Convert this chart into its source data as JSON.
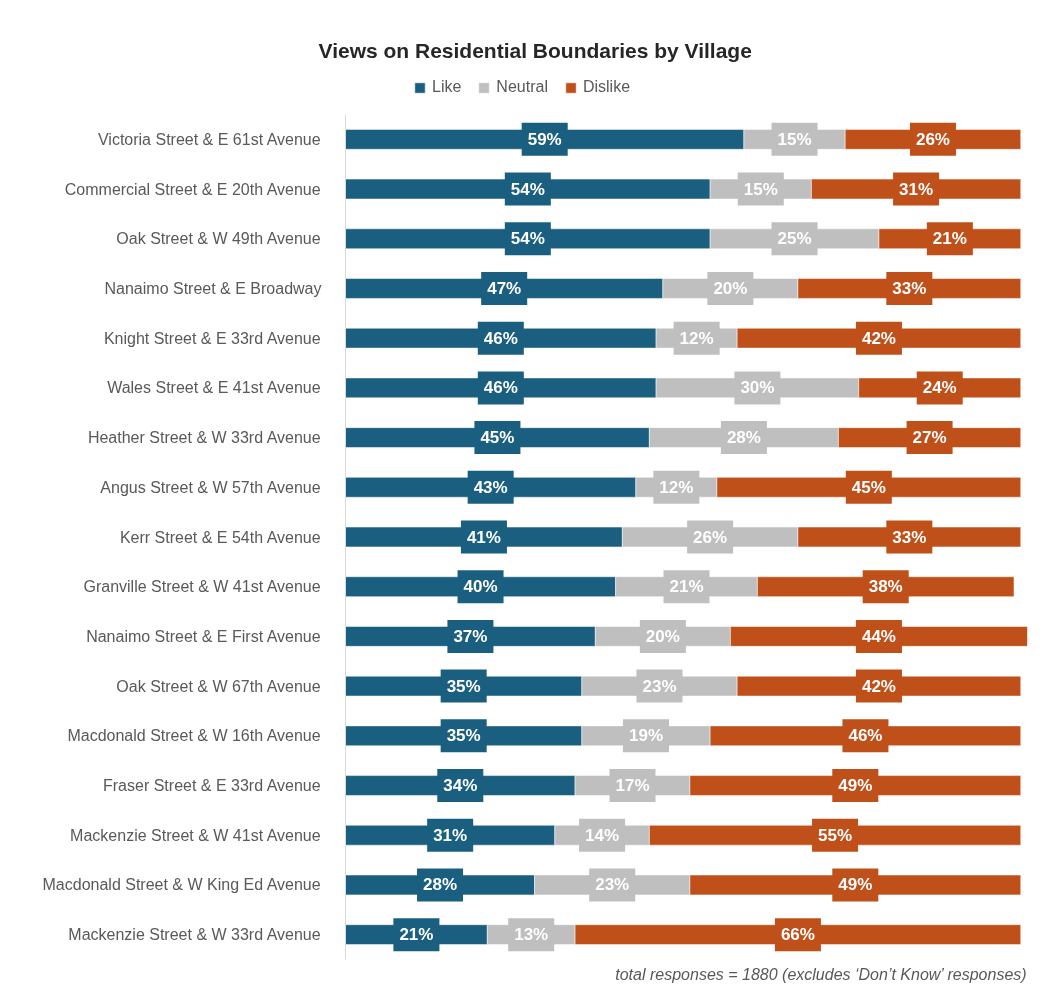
{
  "chart_data": {
    "type": "bar",
    "orientation": "horizontal",
    "stacked": true,
    "title": "Views on Residential Boundaries by Village",
    "categories": [
      "Victoria Street & E 61st Avenue",
      "Commercial Street & E 20th Avenue",
      "Oak Street & W 49th Avenue",
      "Nanaimo Street & E Broadway",
      "Knight Street & E 33rd Avenue",
      "Wales Street & E 41st Avenue",
      "Heather Street & W 33rd Avenue",
      "Angus Street & W 57th Avenue",
      "Kerr Street & E 54th Avenue",
      "Granville Street & W 41st Avenue",
      "Nanaimo Street & E First Avenue",
      "Oak Street & W 67th Avenue",
      "Macdonald Street & W 16th Avenue",
      "Fraser Street & E 33rd Avenue",
      "Mackenzie Street & W 41st Avenue",
      "Macdonald Street & W King Ed Avenue",
      "Mackenzie Street & W 33rd Avenue"
    ],
    "series": [
      {
        "name": "Like",
        "color": "#1b5f80",
        "values": [
          59,
          54,
          54,
          47,
          46,
          46,
          45,
          43,
          41,
          40,
          37,
          35,
          35,
          34,
          31,
          28,
          21
        ],
        "value_labels": [
          "59%",
          "54%",
          "54%",
          "47%",
          "46%",
          "46%",
          "45%",
          "43%",
          "41%",
          "40%",
          "37%",
          "35%",
          "35%",
          "34%",
          "31%",
          "28%",
          "21%"
        ]
      },
      {
        "name": "Neutral",
        "color": "#bfbfbf",
        "values": [
          15,
          15,
          25,
          20,
          12,
          30,
          28,
          12,
          26,
          21,
          20,
          23,
          19,
          17,
          14,
          23,
          13
        ],
        "value_labels": [
          "15%",
          "15%",
          "25%",
          "20%",
          "12%",
          "30%",
          "28%",
          "12%",
          "26%",
          "21%",
          "20%",
          "23%",
          "19%",
          "17%",
          "14%",
          "23%",
          "13%"
        ]
      },
      {
        "name": "Dislike",
        "color": "#c0501a",
        "values": [
          26,
          31,
          21,
          33,
          42,
          24,
          27,
          45,
          33,
          38,
          44,
          42,
          46,
          49,
          55,
          49,
          66
        ],
        "value_labels": [
          "26%",
          "31%",
          "21%",
          "33%",
          "42%",
          "24%",
          "27%",
          "45%",
          "33%",
          "38%",
          "44%",
          "42%",
          "46%",
          "49%",
          "55%",
          "49%",
          "66%"
        ]
      }
    ],
    "legend": "top",
    "grid": false,
    "annotations": [
      "total responses = 1880 (excludes ‘Don’t Know’ responses)"
    ]
  }
}
